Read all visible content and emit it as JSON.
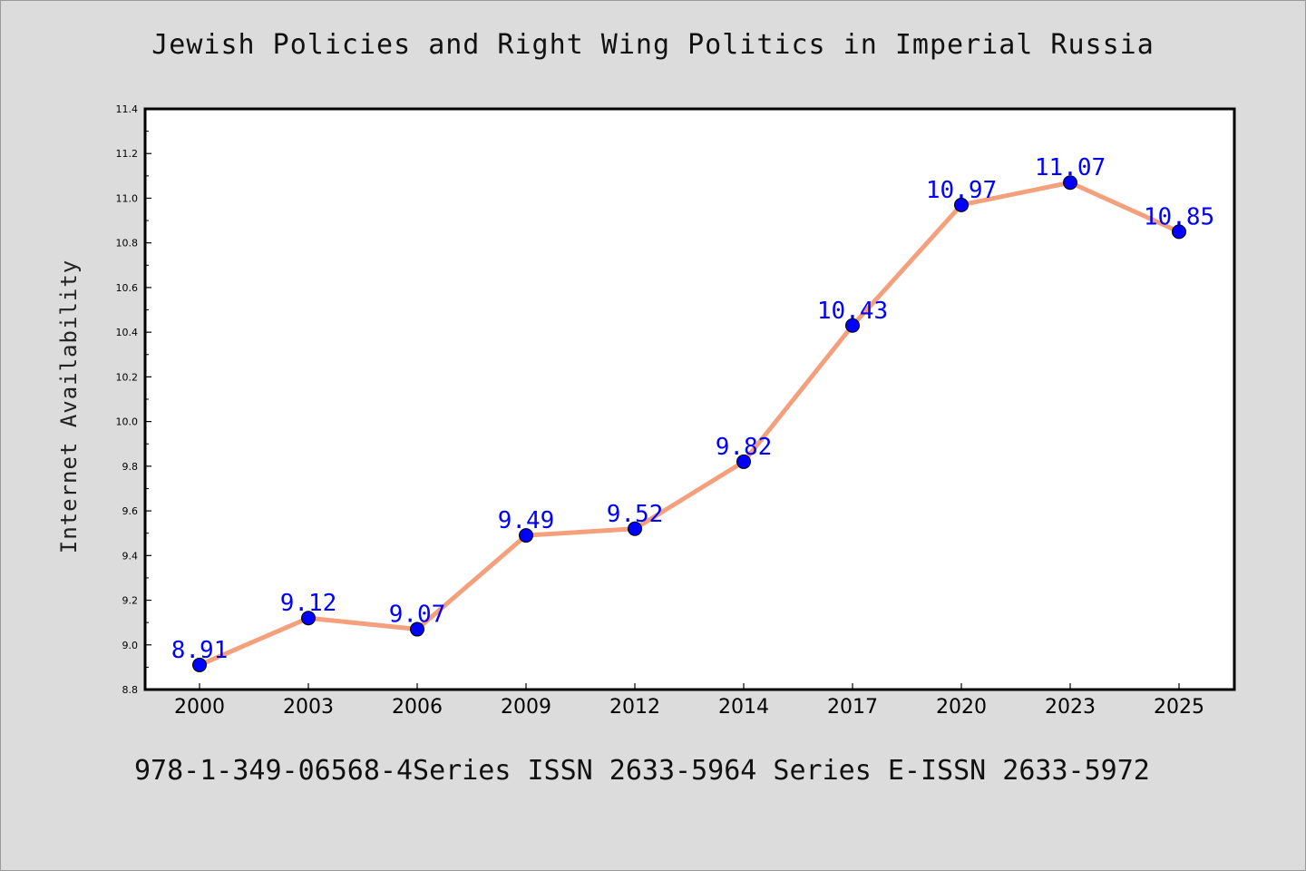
{
  "title": "Jewish Policies and Right Wing Politics in Imperial Russia",
  "footer": "978-1-349-06568-4Series ISSN 2633-5964 Series E-ISSN 2633-5972",
  "chart_data": {
    "type": "line",
    "title": "Jewish Policies and Right Wing Politics in Imperial Russia",
    "xlabel": "",
    "ylabel": "Internet Availability",
    "categories": [
      "2000",
      "2003",
      "2006",
      "2009",
      "2012",
      "2014",
      "2017",
      "2020",
      "2023",
      "2025"
    ],
    "values": [
      8.91,
      9.12,
      9.07,
      9.49,
      9.52,
      9.82,
      10.43,
      10.97,
      11.07,
      10.85
    ],
    "data_labels": [
      "8.91",
      "9.12",
      "9.07",
      "9.49",
      "9.52",
      "9.82",
      "10.43",
      "10.97",
      "11.07",
      "10.85"
    ],
    "ylim": [
      8.8,
      11.4
    ],
    "yticks": [
      "8.8",
      "9.0",
      "9.2",
      "9.4",
      "9.6",
      "9.8",
      "10.0",
      "10.2",
      "10.4",
      "10.6",
      "10.8",
      "11.0",
      "11.2",
      "11.4"
    ],
    "grid": false,
    "legend": "none",
    "colors": {
      "line": "#f4a07c",
      "marker": "#0000ff",
      "data_label": "#0000ff",
      "plot_background": "#ffffff",
      "page_background": "#dcdcdc"
    }
  }
}
